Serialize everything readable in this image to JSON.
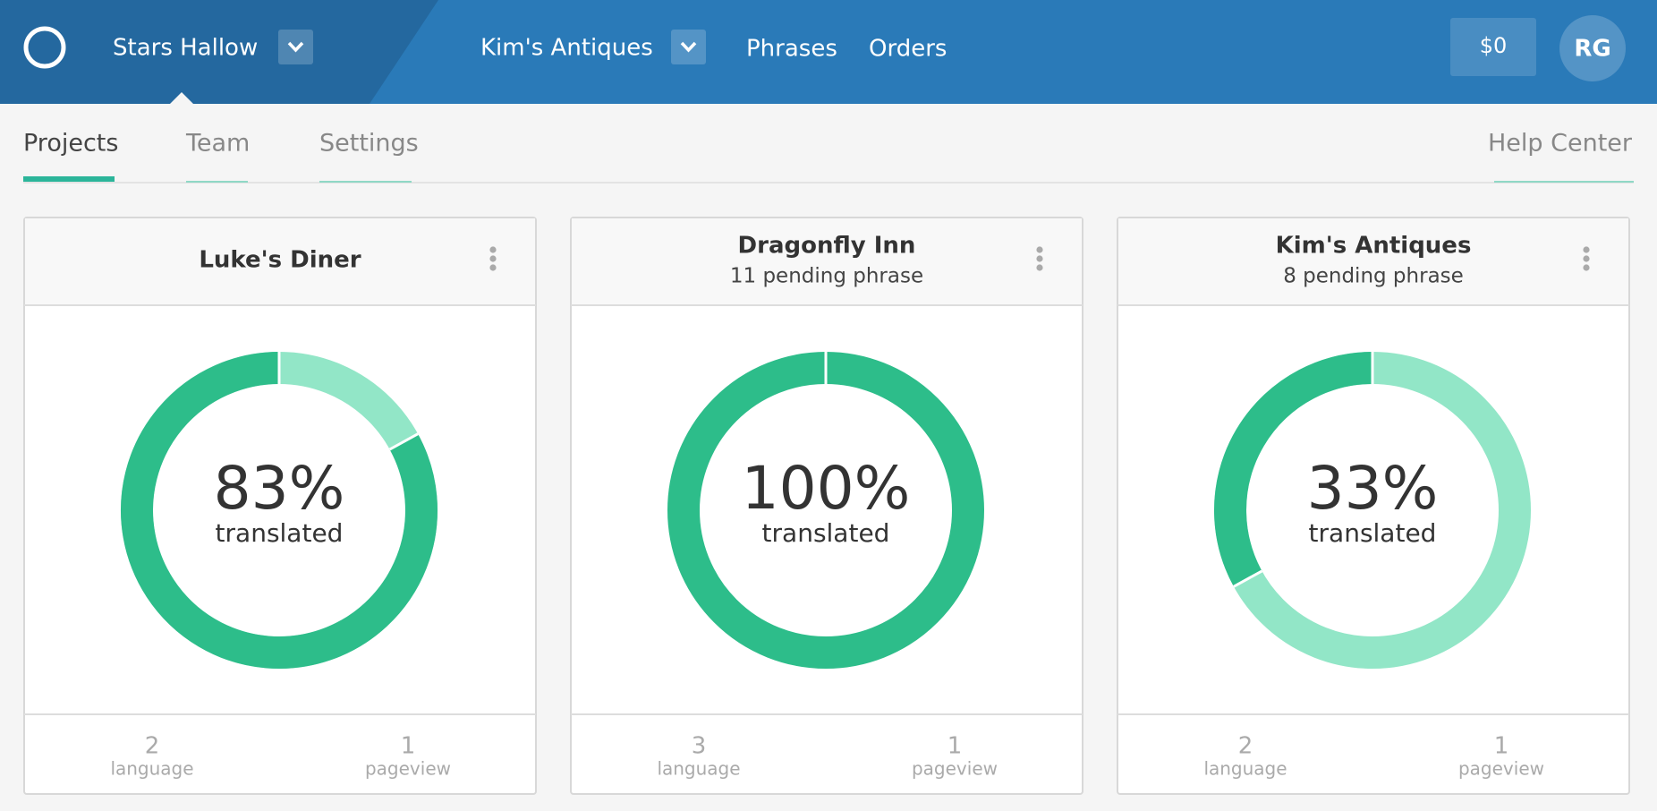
{
  "header": {
    "workspace": "Stars Hallow",
    "project": "Kim's Antiques",
    "nav": [
      "Phrases",
      "Orders"
    ],
    "balance": "$0",
    "avatar": "RG"
  },
  "tabs": {
    "items": [
      "Projects",
      "Team",
      "Settings"
    ],
    "help": "Help Center"
  },
  "projects": [
    {
      "name": "Luke's Diner",
      "translated": {
        "value": 83,
        "label": "83%"
      },
      "caption": "translated",
      "languages": 2,
      "language_label": "language",
      "pageviews": 1,
      "pageview_label": "pageview"
    },
    {
      "name": "Dragonfly Inn",
      "pending": "11 pending phrase",
      "translated": {
        "value": 100,
        "label": "100%"
      },
      "caption": "translated",
      "languages": 3,
      "language_label": "language",
      "pageviews": 1,
      "pageview_label": "pageview"
    },
    {
      "name": "Kim's Antiques",
      "pending": "8 pending phrase",
      "translated": {
        "value": 33,
        "label": "33%"
      },
      "caption": "translated",
      "languages": 2,
      "language_label": "language",
      "pageviews": 1,
      "pageview_label": "pageview"
    }
  ]
}
